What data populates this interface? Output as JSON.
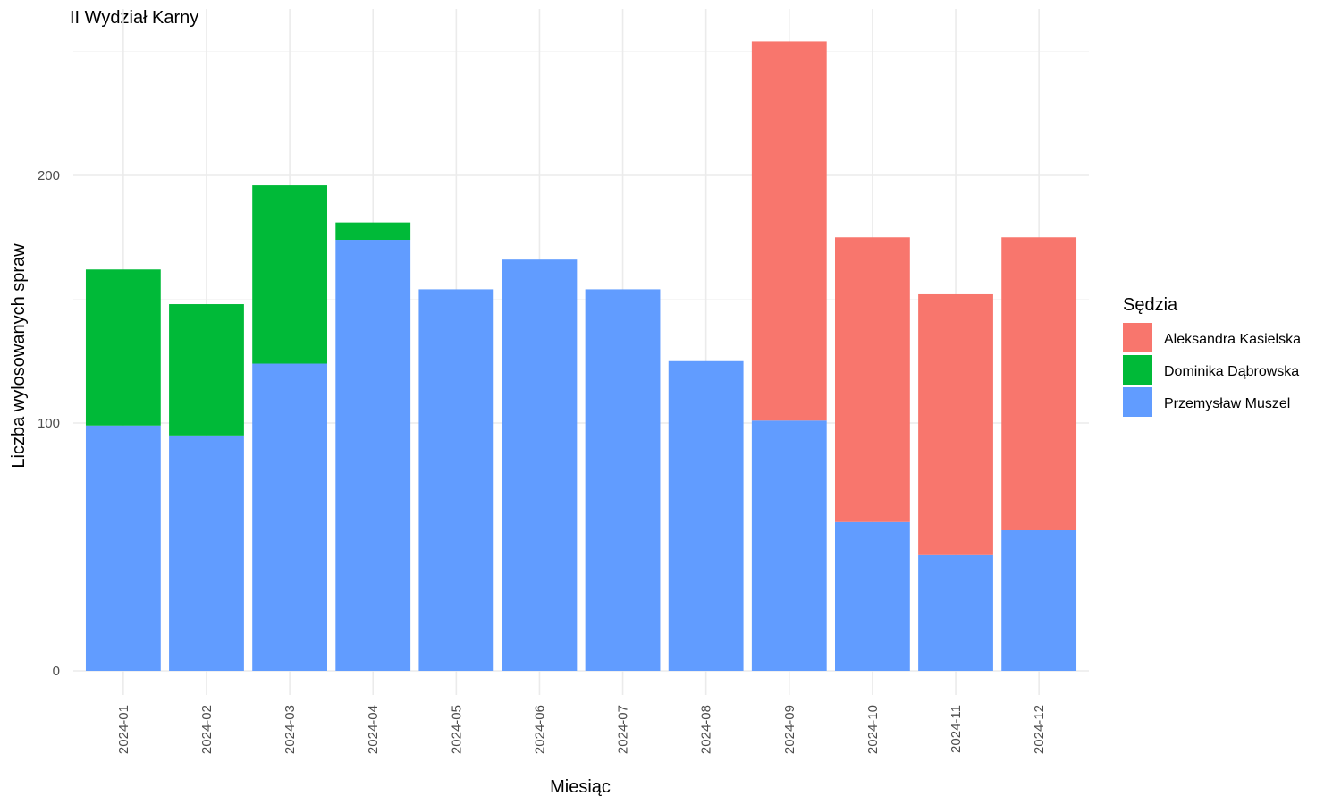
{
  "chart_data": {
    "type": "bar",
    "stacked": true,
    "title": "II Wydział Karny",
    "xlabel": "Miesiąc",
    "ylabel": "Liczba wylosowanych spraw",
    "ylim": [
      0,
      254
    ],
    "yticks": [
      0,
      100,
      200
    ],
    "legend_title": "Sędzia",
    "legend_position": "right",
    "grid": true,
    "categories": [
      "2024-01",
      "2024-02",
      "2024-03",
      "2024-04",
      "2024-05",
      "2024-06",
      "2024-07",
      "2024-08",
      "2024-09",
      "2024-10",
      "2024-11",
      "2024-12"
    ],
    "series": [
      {
        "name": "Aleksandra Kasielska",
        "color": "#F8766D",
        "values": [
          0,
          0,
          0,
          0,
          0,
          0,
          0,
          0,
          153,
          115,
          105,
          118
        ]
      },
      {
        "name": "Dominika Dąbrowska",
        "color": "#00BA38",
        "values": [
          63,
          53,
          72,
          7,
          0,
          0,
          0,
          0,
          0,
          0,
          0,
          0
        ]
      },
      {
        "name": "Przemysław Muszel",
        "color": "#619CFF",
        "values": [
          99,
          95,
          124,
          174,
          154,
          166,
          154,
          125,
          101,
          60,
          47,
          57
        ]
      }
    ]
  }
}
